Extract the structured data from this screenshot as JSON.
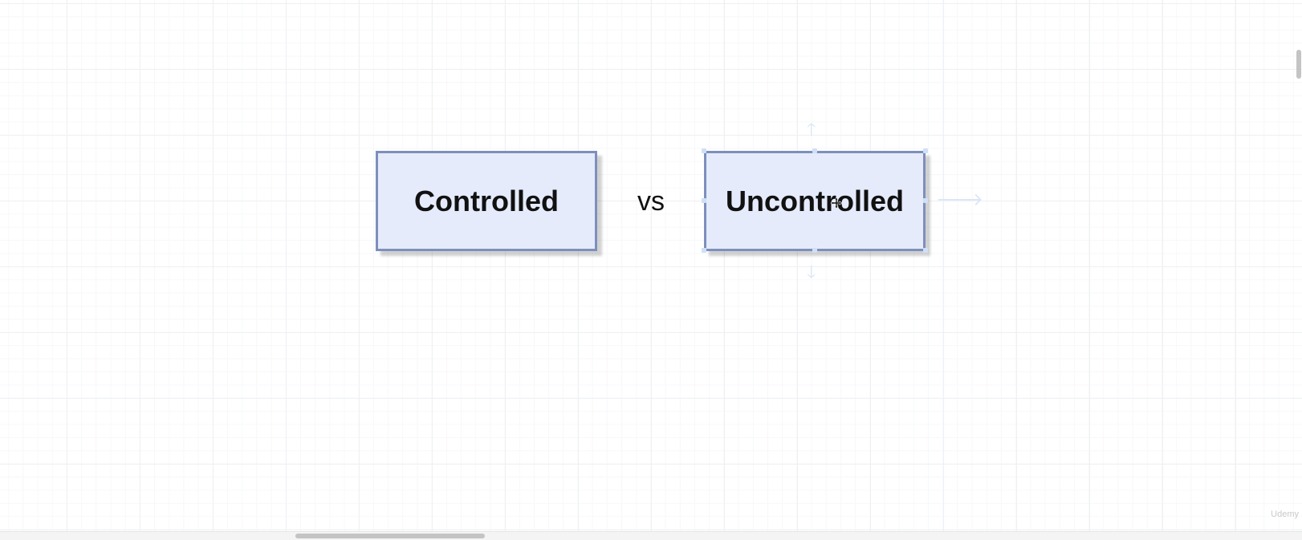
{
  "diagram": {
    "left_box": {
      "label": "Controlled"
    },
    "connector_text": "vs",
    "right_box": {
      "label": "Uncontrolled"
    }
  },
  "watermark": {
    "text": "Udemy"
  },
  "colors": {
    "box_fill": "#e5ebfb",
    "box_border": "#7d8fbc",
    "grid_line": "#eef0f3",
    "selection_handle": "#cfe0f6"
  },
  "icons": {
    "hover_arrows": [
      "arrow-up-icon",
      "arrow-down-icon",
      "arrow-right-icon"
    ],
    "cursor": "move-cursor-icon"
  }
}
